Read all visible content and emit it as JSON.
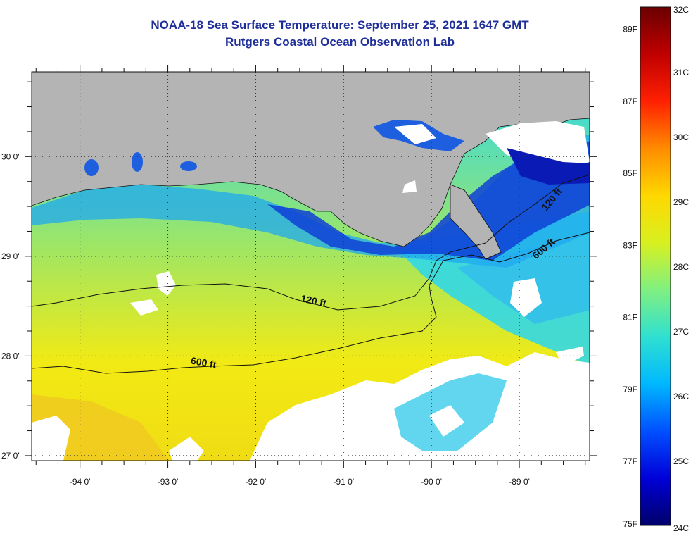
{
  "title": {
    "line1": "NOAA-18 Sea Surface Temperature:  September 25, 2021 1647 GMT",
    "line2": "Rutgers Coastal Ocean Observation Lab"
  },
  "map": {
    "x_axis": {
      "range": [
        -94.55,
        -88.2
      ],
      "ticks": [
        {
          "value": -94,
          "label": "-94 0'"
        },
        {
          "value": -93,
          "label": "-93 0'"
        },
        {
          "value": -92,
          "label": "-92 0'"
        },
        {
          "value": -91,
          "label": "-91 0'"
        },
        {
          "value": -90,
          "label": "-90 0'"
        },
        {
          "value": -89,
          "label": "-89 0'"
        }
      ]
    },
    "y_axis": {
      "range": [
        26.95,
        30.85
      ],
      "ticks": [
        {
          "value": 30,
          "label": "30 0'"
        },
        {
          "value": 29,
          "label": "29 0'"
        },
        {
          "value": 28,
          "label": "28 0'"
        },
        {
          "value": 27,
          "label": "27 0'"
        }
      ]
    },
    "contours": [
      {
        "label": "120 ft",
        "lon": -91.35,
        "lat": 28.52,
        "rotate": 12
      },
      {
        "label": "600 ft",
        "lon": -92.6,
        "lat": 27.9,
        "rotate": 10
      },
      {
        "label": "120 ft",
        "lon": -88.6,
        "lat": 29.55,
        "rotate": -50
      },
      {
        "label": "600 ft",
        "lon": -88.7,
        "lat": 29.05,
        "rotate": -40
      }
    ],
    "colors": {
      "land": "#b4b4b4",
      "cloud": "#ffffff",
      "warm": "#f2ea14",
      "mid": "#9fe664",
      "cool": "#29d7f0",
      "cold": "#0f3fd6",
      "coldest": "#0a1bb5"
    }
  },
  "colorbar": {
    "range_c": [
      24,
      32
    ],
    "celsius_labels": [
      {
        "value": 32,
        "label": "32C"
      },
      {
        "value": 31,
        "label": "31C"
      },
      {
        "value": 30,
        "label": "30C"
      },
      {
        "value": 29,
        "label": "29C"
      },
      {
        "value": 28,
        "label": "28C"
      },
      {
        "value": 27,
        "label": "27C"
      },
      {
        "value": 26,
        "label": "26C"
      },
      {
        "value": 25,
        "label": "25C"
      },
      {
        "value": 24,
        "label": "24C"
      }
    ],
    "fahrenheit_labels": [
      {
        "value": 89,
        "label": "89F"
      },
      {
        "value": 87,
        "label": "87F"
      },
      {
        "value": 85,
        "label": "85F"
      },
      {
        "value": 83,
        "label": "83F"
      },
      {
        "value": 81,
        "label": "81F"
      },
      {
        "value": 79,
        "label": "79F"
      },
      {
        "value": 77,
        "label": "77F"
      },
      {
        "value": 75,
        "label": "75F"
      }
    ],
    "stops": [
      "#00006a",
      "#0000d8",
      "#0050ff",
      "#00b8ff",
      "#30e0d0",
      "#80f080",
      "#d8f020",
      "#ffd800",
      "#ff8c00",
      "#ff2000",
      "#c00000",
      "#6a0000"
    ]
  }
}
